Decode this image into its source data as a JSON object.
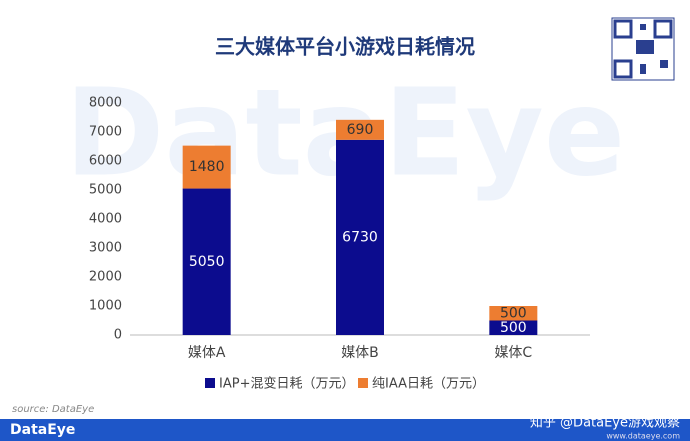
{
  "chart_data": {
    "type": "stacked_bar",
    "title": "三大媒体平台小游戏日耗情况",
    "categories": [
      "媒体A",
      "媒体B",
      "媒体C"
    ],
    "series": [
      {
        "name": "IAP+混变日耗（万元）",
        "color": "#0c0c8e",
        "values": [
          5050,
          6730,
          500
        ]
      },
      {
        "name": "纯IAA日耗（万元）",
        "color": "#ed7d31",
        "values": [
          1480,
          690,
          500
        ]
      }
    ],
    "ylim": [
      0,
      8000
    ],
    "yticks": [
      0,
      1000,
      2000,
      3000,
      4000,
      5000,
      6000,
      7000,
      8000
    ],
    "source": "source: DataEye",
    "watermark": "DataEye"
  },
  "footer": {
    "logo": "DataEye",
    "credit": "知乎 @DataEye游戏观察",
    "site": "www.dataeye.com"
  }
}
